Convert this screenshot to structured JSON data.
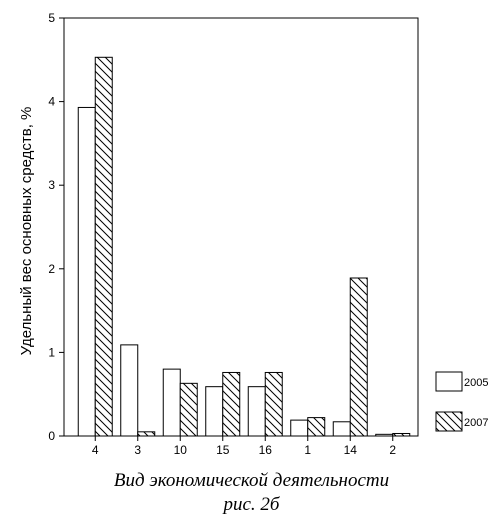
{
  "chart_data": {
    "type": "bar",
    "categories": [
      "4",
      "3",
      "10",
      "15",
      "16",
      "1",
      "14",
      "2"
    ],
    "series": [
      {
        "name": "2005",
        "values": [
          3.93,
          1.09,
          0.8,
          0.59,
          0.59,
          0.19,
          0.17,
          0.02
        ],
        "fill": "solid-white"
      },
      {
        "name": "2007",
        "values": [
          4.53,
          0.05,
          0.63,
          0.76,
          0.76,
          0.22,
          1.89,
          0.03
        ],
        "fill": "diagonal-hatch"
      }
    ],
    "xlabel": "Вид экономической деятельности",
    "ylabel": "Удельный вес основных средств, %",
    "ylim": [
      0,
      5
    ],
    "yticks": [
      "0",
      "1",
      "2",
      "3",
      "4",
      "5"
    ],
    "legend_position": "right"
  },
  "caption": {
    "xlabel": "Вид экономической деятельности",
    "figure": "рис. 2б"
  }
}
